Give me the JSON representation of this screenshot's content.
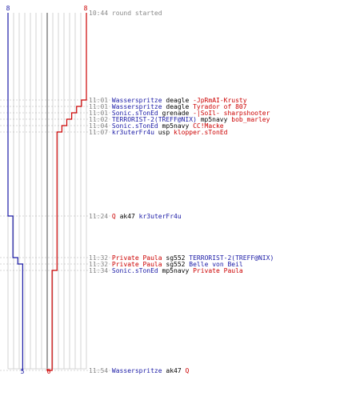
{
  "scores": {
    "blue_start": "8",
    "red_start": "8",
    "blue_end": "5",
    "red_end": "0"
  },
  "colors": {
    "blue": "#1a1aa6",
    "red": "#cc0000",
    "time": "#888888",
    "grid": "#c8c8c8",
    "center": "#666666"
  },
  "events": [
    {
      "time": "10:44",
      "killer": "",
      "killer_team": "",
      "weapon": "round started",
      "victim": "",
      "victim_team": ""
    },
    {
      "time": "11:01",
      "killer": "Wasserspritze",
      "killer_team": "b",
      "weapon": "deagle",
      "victim": "-JpRmAI-Krusty",
      "victim_team": "r"
    },
    {
      "time": "11:01",
      "killer": "Wasserspritze",
      "killer_team": "b",
      "weapon": "deagle",
      "victim": "Tyrador of 807",
      "victim_team": "r"
    },
    {
      "time": "11:01",
      "killer": "Sonic.sTonEd",
      "killer_team": "b",
      "weapon": "grenade",
      "victim": "-|SoIl- sharpshooter",
      "victim_team": "r"
    },
    {
      "time": "11:02",
      "killer": "TERRORIST-2(TREFF@NIX)",
      "killer_team": "b",
      "weapon": "mp5navy",
      "victim": "bob_marley",
      "victim_team": "r"
    },
    {
      "time": "11:04",
      "killer": "Sonic.sTonEd",
      "killer_team": "b",
      "weapon": "mp5navy",
      "victim": "CC!Macke",
      "victim_team": "r"
    },
    {
      "time": "11:07",
      "killer": "kr3uterFr4u",
      "killer_team": "b",
      "weapon": "usp",
      "victim": "klopper.sTonEd",
      "victim_team": "r"
    },
    {
      "time": "11:24",
      "killer": "Q",
      "killer_team": "r",
      "weapon": "ak47",
      "victim": "kr3uterFr4u",
      "victim_team": "b"
    },
    {
      "time": "11:32",
      "killer": "Private Paula",
      "killer_team": "r",
      "weapon": "sg552",
      "victim": "TERRORIST-2(TREFF@NIX)",
      "victim_team": "b"
    },
    {
      "time": "11:32",
      "killer": "Private Paula",
      "killer_team": "r",
      "weapon": "sg552",
      "victim": "Belle von Beil",
      "victim_team": "b"
    },
    {
      "time": "11:34",
      "killer": "Sonic.sTonEd",
      "killer_team": "b",
      "weapon": "mp5navy",
      "victim": "Private Paula",
      "victim_team": "r"
    },
    {
      "time": "11:54",
      "killer": "Wasserspritze",
      "killer_team": "b",
      "weapon": "ak47",
      "victim": "Q",
      "victim_team": "r"
    }
  ],
  "blue_alive_steps": [
    8,
    8,
    8,
    8,
    8,
    8,
    8,
    7,
    6,
    5,
    5,
    5
  ],
  "red_alive_steps": [
    8,
    7,
    6,
    5,
    4,
    3,
    2,
    2,
    2,
    2,
    1,
    0
  ]
}
